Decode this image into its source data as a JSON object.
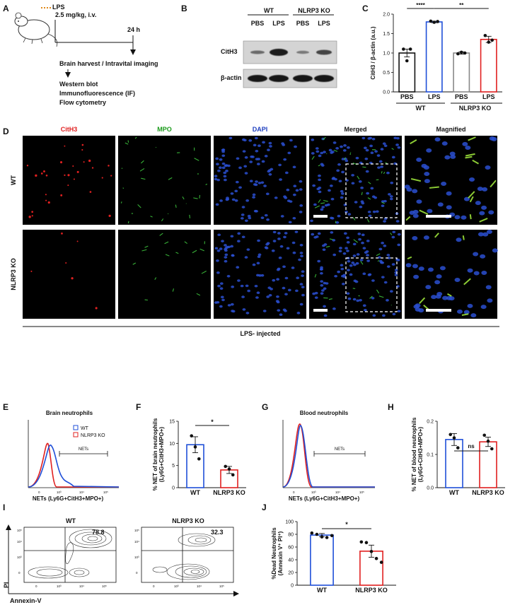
{
  "panels": {
    "A": "A",
    "B": "B",
    "C": "C",
    "D": "D",
    "E": "E",
    "F": "F",
    "G": "G",
    "H": "H",
    "I": "I",
    "J": "J"
  },
  "panelA": {
    "lps": "LPS",
    "dose": "2.5 mg/kg, i.v.",
    "time": "24 h",
    "harvest": "Brain harvest / Intravital imaging",
    "assays": [
      "Western blot",
      "Immunofluorescence (IF)",
      "Flow cytometry"
    ]
  },
  "panelB": {
    "groups": [
      "WT",
      "NLRP3 KO"
    ],
    "lanes": [
      "PBS",
      "LPS",
      "PBS",
      "LPS"
    ],
    "rows": [
      "CitH3",
      "β-actin"
    ]
  },
  "panelD": {
    "columns": [
      "CitH3",
      "MPO",
      "DAPI",
      "Merged",
      "Magnified"
    ],
    "column_colors": [
      "#e02020",
      "#1a9a1a",
      "#1f3fbf",
      "#111111",
      "#111111"
    ],
    "rows": [
      "WT",
      "NLRP3 KO"
    ],
    "footer": "LPS- injected"
  },
  "panelE": {
    "title": "Brain neutrophils",
    "gate": "NETs",
    "xlabel": "NETs (Ly6G+CitH3+MPO+)",
    "legend": [
      "WT",
      "NLRP3 KO"
    ],
    "ticks": [
      "0",
      "10³",
      "10⁴",
      "10⁵"
    ]
  },
  "panelG": {
    "title": "Blood neutrophils",
    "gate": "NETs",
    "xlabel": "NETs (Ly6G+CitH3+MPO+)",
    "ticks": [
      "0",
      "10³",
      "10⁴",
      "10⁵"
    ]
  },
  "panelI": {
    "titles": [
      "WT",
      "NLRP3 KO"
    ],
    "values": [
      "78.8",
      "32.3"
    ],
    "xlabel": "Annexin-V",
    "ylabel": "PI",
    "yticks": [
      "10⁵",
      "10⁴",
      "10³",
      "0"
    ],
    "xticks": [
      "0",
      "10³",
      "10⁴",
      "10⁵"
    ]
  },
  "chart_data": [
    {
      "panel": "C",
      "type": "bar",
      "categories": [
        "PBS",
        "LPS",
        "PBS",
        "LPS"
      ],
      "groups": [
        "WT",
        "NLRP3 KO"
      ],
      "values": [
        1.0,
        1.8,
        1.0,
        1.35
      ],
      "errors": [
        0.1,
        0.02,
        0.03,
        0.08
      ],
      "points": [
        [
          1.1,
          0.8,
          1.1
        ],
        [
          1.82,
          1.79,
          1.81
        ],
        [
          0.98,
          1.02,
          1.0
        ],
        [
          1.45,
          1.28,
          1.33
        ]
      ],
      "bar_colors": [
        "#111111",
        "#1f4fd8",
        "#888888",
        "#e02020"
      ],
      "ylabel": "CitH3 / β-actin (a.u.)",
      "ylim": [
        0,
        2
      ],
      "yticks": [
        "0.0",
        "0.5",
        "1.0",
        "1.5",
        "2.0"
      ],
      "significance": [
        "****",
        "**"
      ]
    },
    {
      "panel": "F",
      "type": "bar",
      "categories": [
        "WT",
        "NLRP3 KO"
      ],
      "values": [
        9.7,
        4.0
      ],
      "errors": [
        1.8,
        0.8
      ],
      "points": [
        [
          11.7,
          9.2,
          6.5
        ],
        [
          4.8,
          4.2,
          2.9
        ]
      ],
      "bar_colors": [
        "#1f4fd8",
        "#e02020"
      ],
      "ylabel": "% NET of brain neutrophils (Ly6G+CitH3+MPO+)",
      "ylim": [
        0,
        15
      ],
      "yticks": [
        "0",
        "5",
        "10",
        "15"
      ],
      "significance": [
        "*"
      ]
    },
    {
      "panel": "H",
      "type": "bar",
      "categories": [
        "WT",
        "NLRP3 KO"
      ],
      "values": [
        0.145,
        0.138
      ],
      "errors": [
        0.018,
        0.014
      ],
      "points": [
        [
          0.16,
          0.15,
          0.12
        ],
        [
          0.158,
          0.14,
          0.117
        ]
      ],
      "bar_colors": [
        "#1f4fd8",
        "#e02020"
      ],
      "ylabel": "% NET of blood neutrophils (Ly6G+CitH3+MPO+)",
      "ylim": [
        0,
        0.2
      ],
      "yticks": [
        "0.0",
        "0.1",
        "0.2"
      ],
      "significance": [
        "ns"
      ]
    },
    {
      "panel": "J",
      "type": "bar",
      "categories": [
        "WT",
        "NLRP3 KO"
      ],
      "values": [
        78.8,
        53.5
      ],
      "errors": [
        2.5,
        9.5
      ],
      "points": [
        [
          82,
          80,
          76,
          75,
          78
        ],
        [
          68,
          67,
          53,
          42,
          36
        ]
      ],
      "bar_colors": [
        "#1f4fd8",
        "#e02020"
      ],
      "ylabel": "%Dead Neutrophils (Annexin V⁺ PI⁺)",
      "ylim": [
        0,
        100
      ],
      "yticks": [
        "0",
        "20",
        "40",
        "60",
        "80",
        "100"
      ],
      "significance": [
        "*"
      ]
    }
  ]
}
